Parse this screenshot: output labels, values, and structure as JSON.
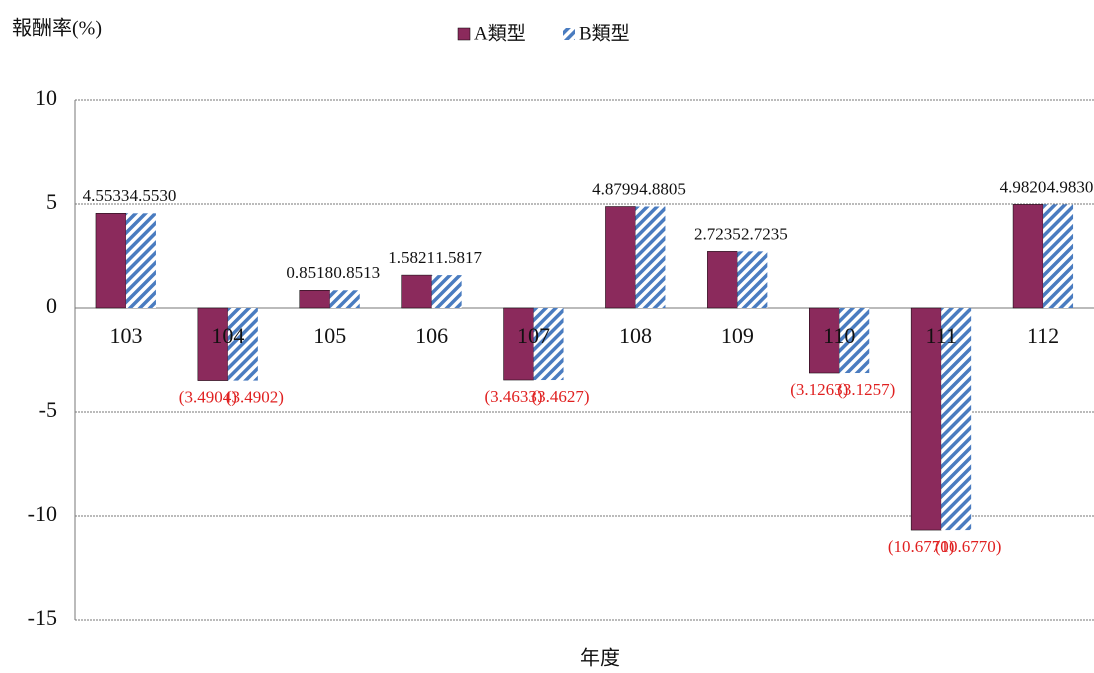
{
  "chart_data": {
    "type": "bar",
    "y_label": "報酬率(%)",
    "x_label": "年度",
    "categories": [
      "103",
      "104",
      "105",
      "106",
      "107",
      "108",
      "109",
      "110",
      "111",
      "112"
    ],
    "series": [
      {
        "name": "A類型",
        "color": "#8b2a5c",
        "pattern": "solid",
        "values": [
          4.5533,
          -3.4904,
          0.8518,
          1.5821,
          -3.4633,
          4.8799,
          2.7235,
          -3.1263,
          -10.677,
          4.982
        ],
        "value_labels": [
          "4.5533",
          "(3.4904)",
          "0.8518",
          "1.5821",
          "(3.4633)",
          "4.8799",
          "2.7235",
          "(3.1263)",
          "(10.6770)",
          "4.9820"
        ]
      },
      {
        "name": "B類型",
        "color": "#4a7cc0",
        "pattern": "hatch",
        "values": [
          4.553,
          -3.4902,
          0.8513,
          1.5817,
          -3.4627,
          4.8805,
          2.7235,
          -3.1257,
          -10.677,
          4.983
        ],
        "value_labels": [
          "4.5530",
          "(3.4902)",
          "0.8513",
          "1.5817",
          "(3.4627)",
          "4.8805",
          "2.7235",
          "(3.1257)",
          "(10.6770)",
          "4.9830"
        ]
      }
    ],
    "ylim": [
      -15,
      10
    ],
    "yticks": [
      -15,
      -10,
      -5,
      0,
      5,
      10
    ],
    "grid": true,
    "negative_label_color": "#e02020",
    "legend": "top"
  }
}
